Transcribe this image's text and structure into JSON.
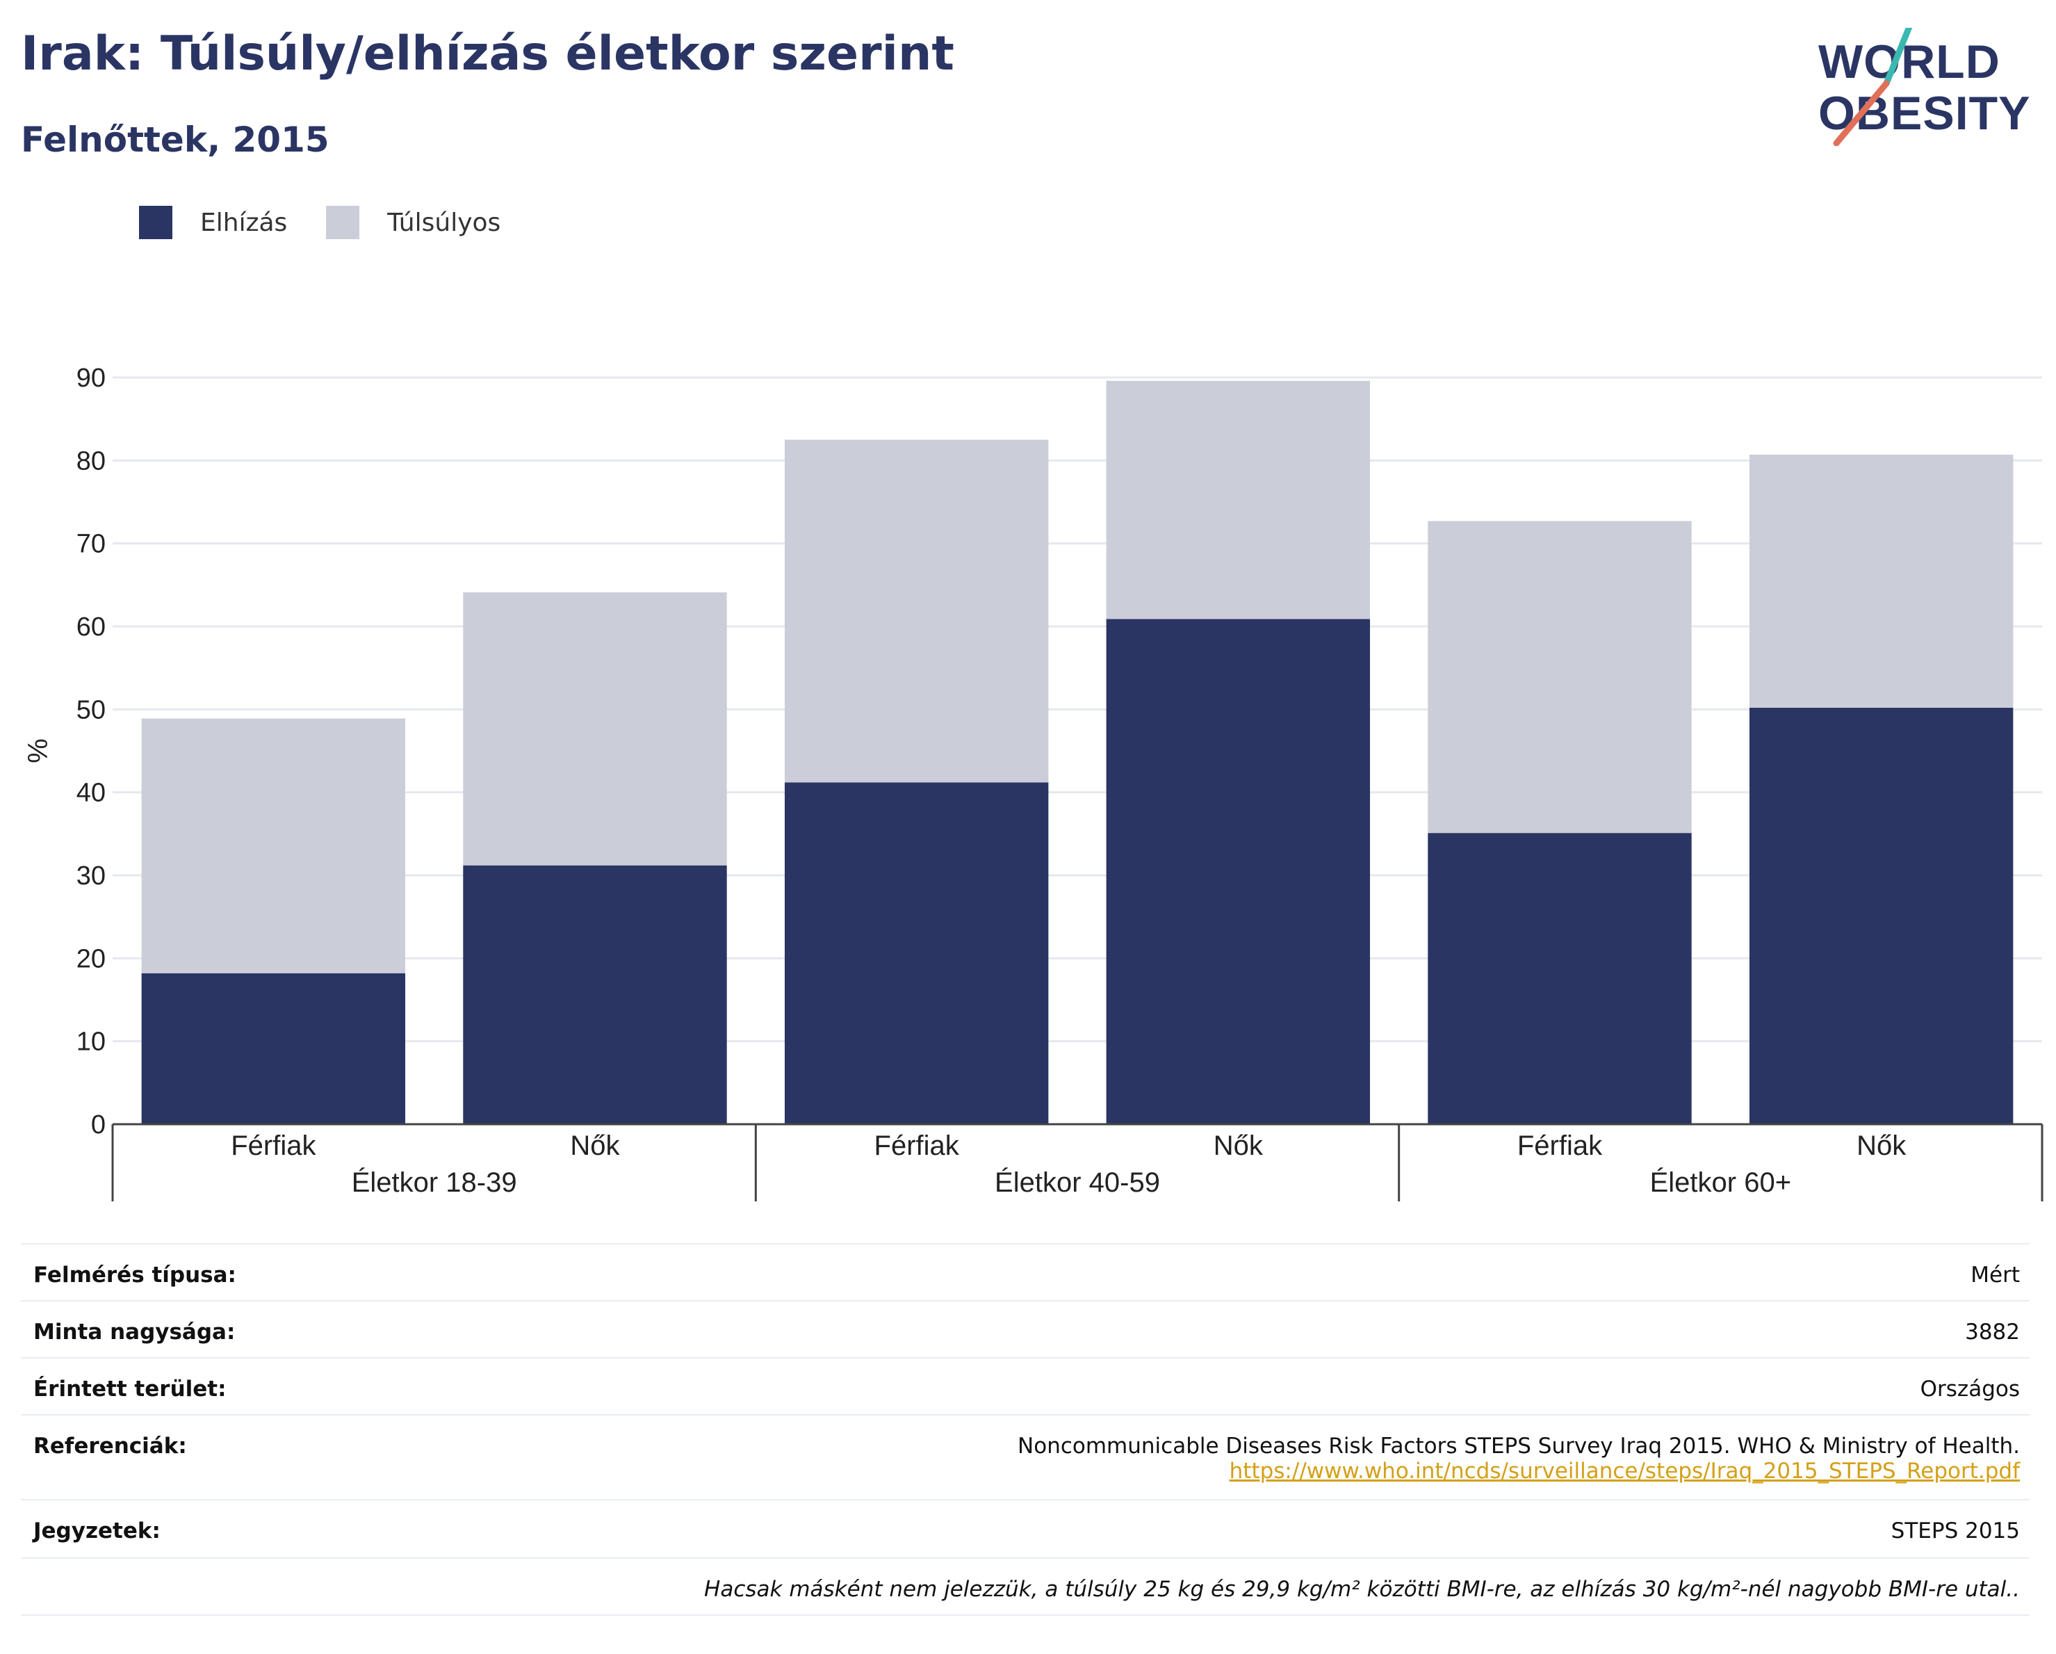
{
  "header": {
    "title": "Irak: Túlsúly/elhízás életkor szerint",
    "subtitle": "Felnőttek, 2015"
  },
  "logo": {
    "line1": "WORLD",
    "line2": "OBESITY",
    "icon": "world-obesity-logo"
  },
  "colors": {
    "obesity": "#2a3564",
    "overweight": "#cbcdd8",
    "accent_teal": "#3bb8b0",
    "accent_red": "#e0705a",
    "link": "#d4a017"
  },
  "chart_data": {
    "type": "bar",
    "stacked": true,
    "ylabel": "%",
    "ylim": [
      0,
      90
    ],
    "yticks": [
      0,
      10,
      20,
      30,
      40,
      50,
      60,
      70,
      80,
      90
    ],
    "grid": true,
    "legend_position": "top-left",
    "categories": [
      "Férfiak",
      "Nők",
      "Férfiak",
      "Nők",
      "Férfiak",
      "Nők"
    ],
    "groups": [
      {
        "label": "Életkor 18-39",
        "categories": [
          "Férfiak",
          "Nők"
        ]
      },
      {
        "label": "Életkor 40-59",
        "categories": [
          "Férfiak",
          "Nők"
        ]
      },
      {
        "label": "Életkor 60+",
        "categories": [
          "Férfiak",
          "Nők"
        ]
      }
    ],
    "series": [
      {
        "name": "Elhízás",
        "values": [
          18.2,
          31.2,
          41.2,
          60.9,
          35.1,
          50.2
        ]
      },
      {
        "name": "Túlsúlyos",
        "values": [
          30.7,
          32.9,
          41.3,
          28.7,
          37.6,
          30.5
        ]
      }
    ]
  },
  "info": {
    "survey_type_label": "Felmérés típusa:",
    "survey_type_value": "Mért",
    "sample_size_label": "Minta nagysága:",
    "sample_size_value": "3882",
    "area_label": "Érintett terület:",
    "area_value": "Országos",
    "references_label": "Referenciák:",
    "references_value": "Noncommunicable Diseases Risk Factors STEPS Survey Iraq 2015. WHO & Ministry of Health.",
    "references_link": "https://www.who.int/ncds/surveillance/steps/Iraq_2015_STEPS_Report.pdf",
    "notes_label": "Jegyzetek:",
    "notes_value": "STEPS 2015",
    "footnote": "Hacsak másként nem jelezzük, a túlsúly 25 kg és 29,9 kg/m² közötti BMI-re, az elhízás 30 kg/m²-nél nagyobb BMI-re utal.."
  }
}
